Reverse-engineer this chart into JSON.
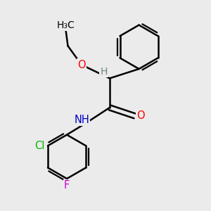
{
  "bg_color": "#ebebeb",
  "bond_color": "#000000",
  "bond_width": 1.8,
  "atom_colors": {
    "O": "#ff0000",
    "N": "#0000cd",
    "Cl": "#00b300",
    "F": "#cc00cc",
    "H": "#6e8080",
    "C": "#000000"
  },
  "font_size": 10.5,
  "figsize": [
    3.0,
    3.0
  ],
  "dpi": 100
}
